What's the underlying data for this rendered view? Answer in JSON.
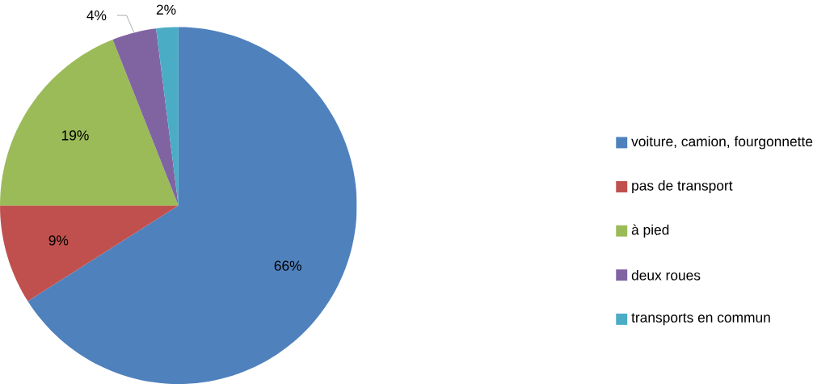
{
  "chart_data": {
    "type": "pie",
    "categories": [
      "voiture, camion, fourgonnette",
      "pas de transport",
      "à pied",
      "deux roues",
      "transports en commun"
    ],
    "values": [
      66,
      9,
      19,
      4,
      2
    ],
    "value_labels": [
      "66%",
      "9%",
      "19%",
      "4%",
      "2%"
    ],
    "colors": [
      "#4f81bd",
      "#c0504d",
      "#9bbb59",
      "#8064a2",
      "#4bacc6"
    ],
    "legend": "right"
  }
}
